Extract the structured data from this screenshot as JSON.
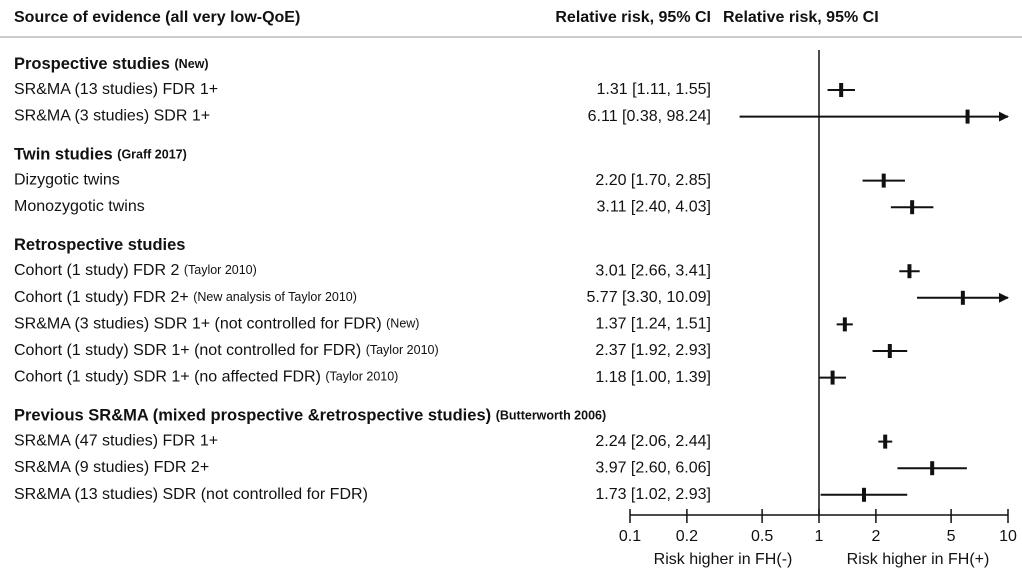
{
  "chart_data": {
    "type": "forest",
    "columns": [
      "Source of evidence (all very low-QoE)",
      "Relative risk, 95% CI",
      "Relative risk, 95% CI"
    ],
    "color": "#111111",
    "log_x": true,
    "xlim": [
      0.1,
      10
    ],
    "xticks": [
      0.1,
      0.2,
      0.5,
      1,
      2,
      5,
      10
    ],
    "reference": 1,
    "x_labels": [
      "Risk higher in FH(-)",
      "Risk higher in FH(+)"
    ],
    "groups": [
      {
        "title": "Prospective studies",
        "note": "(New)",
        "rows": [
          {
            "label": "SR&MA (13 studies) FDR 1+",
            "value_label": "1.31 [1.11, 1.55]",
            "estimate": 1.31,
            "lower": 1.11,
            "upper": 1.55
          },
          {
            "label": "SR&MA (3 studies) SDR 1+",
            "value_label": "6.11 [0.38, 98.24]",
            "estimate": 6.11,
            "lower": 0.38,
            "upper": 98.24
          }
        ]
      },
      {
        "title": "Twin studies",
        "note": "(Graff 2017)",
        "rows": [
          {
            "label": "Dizygotic twins",
            "value_label": "2.20 [1.70, 2.85]",
            "estimate": 2.2,
            "lower": 1.7,
            "upper": 2.85
          },
          {
            "label": "Monozygotic twins",
            "value_label": "3.11 [2.40, 4.03]",
            "estimate": 3.11,
            "lower": 2.4,
            "upper": 4.03
          }
        ]
      },
      {
        "title": "Retrospective studies",
        "rows": [
          {
            "label": "Cohort (1 study) FDR 2",
            "note": "(Taylor 2010)",
            "value_label": "3.01 [2.66, 3.41]",
            "estimate": 3.01,
            "lower": 2.66,
            "upper": 3.41
          },
          {
            "label": "Cohort (1 study) FDR 2+",
            "note": "(New analysis of Taylor 2010)",
            "value_label": "5.77 [3.30, 10.09]",
            "estimate": 5.77,
            "lower": 3.3,
            "upper": 10.09
          },
          {
            "label": "SR&MA (3 studies) SDR 1+ (not controlled for FDR)",
            "note": "(New)",
            "value_label": "1.37 [1.24, 1.51]",
            "estimate": 1.37,
            "lower": 1.24,
            "upper": 1.51
          },
          {
            "label": "Cohort (1 study) SDR 1+ (not controlled for FDR)",
            "note": "(Taylor 2010)",
            "value_label": "2.37 [1.92, 2.93]",
            "estimate": 2.37,
            "lower": 1.92,
            "upper": 2.93
          },
          {
            "label": "Cohort (1 study) SDR 1+ (no affected FDR)",
            "note": "(Taylor 2010)",
            "value_label": "1.18 [1.00, 1.39]",
            "estimate": 1.18,
            "lower": 1.0,
            "upper": 1.39
          }
        ]
      },
      {
        "title": "Previous SR&MA (mixed prospective &retrospective studies)",
        "note": "(Butterworth 2006)",
        "rows": [
          {
            "label": "SR&MA (47 studies) FDR 1+",
            "value_label": "2.24 [2.06, 2.44]",
            "estimate": 2.24,
            "lower": 2.06,
            "upper": 2.44
          },
          {
            "label": "SR&MA (9 studies) FDR 2+",
            "value_label": "3.97 [2.60, 6.06]",
            "estimate": 3.97,
            "lower": 2.6,
            "upper": 6.06
          },
          {
            "label": "SR&MA (13 studies) SDR (not controlled for FDR)",
            "value_label": "1.73 [1.02, 2.93]",
            "estimate": 1.73,
            "lower": 1.02,
            "upper": 2.93
          }
        ]
      }
    ]
  }
}
